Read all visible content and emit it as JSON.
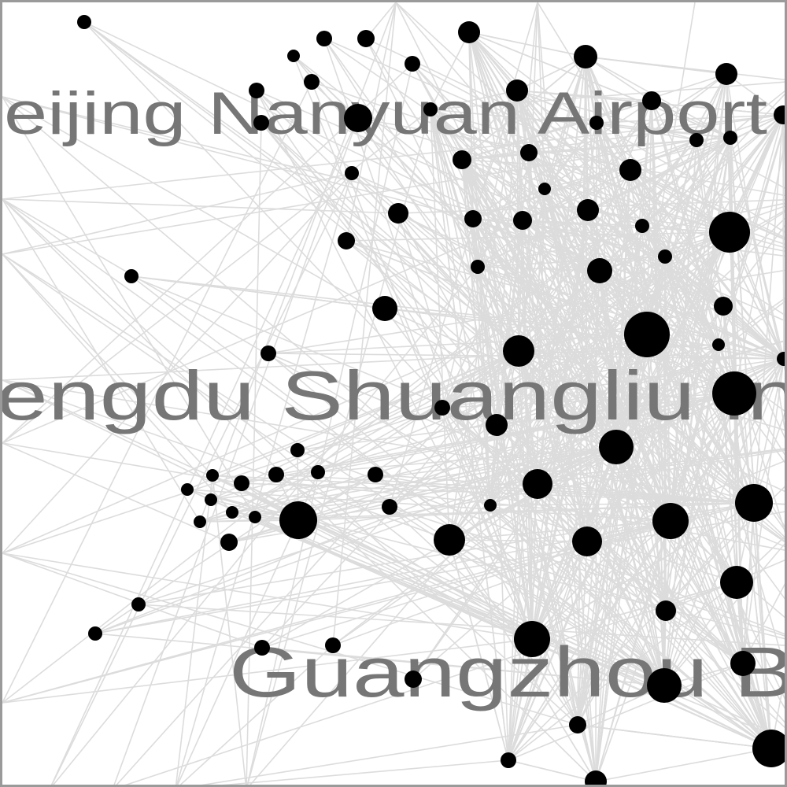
{
  "labels": [
    {
      "id": "label-beijing-nanyuan",
      "text": "eijing Nanyuan Airport"
    },
    {
      "id": "label-chengdu-shuangliu",
      "text": "engdu Shuangliu In"
    },
    {
      "id": "label-guangzhou",
      "text": "Guangzhou B"
    }
  ],
  "colors": {
    "edge": "#dcdcdc",
    "node": "#000000",
    "label": "#767676",
    "frame": "#9a9a9a",
    "background": "#ffffff"
  }
}
